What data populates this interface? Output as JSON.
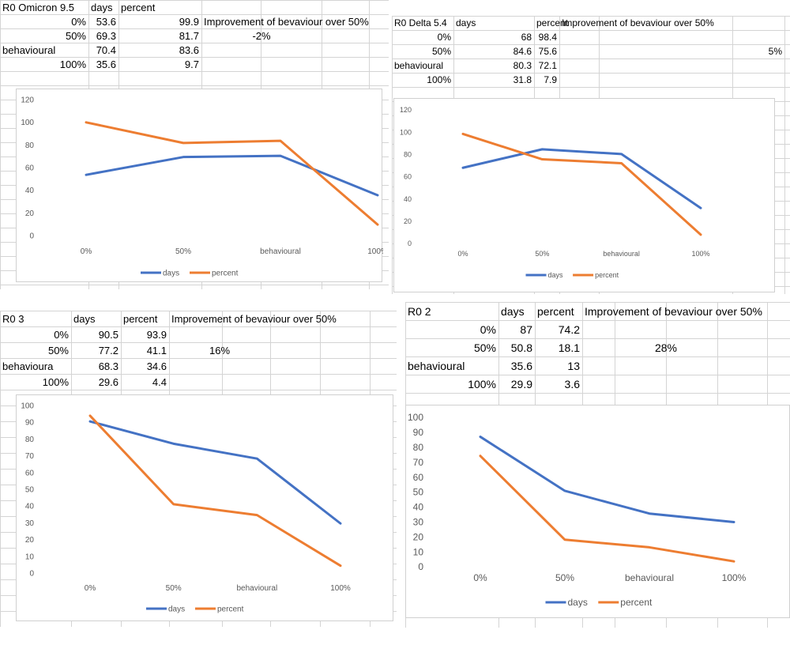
{
  "colors": {
    "days": "#4472c4",
    "percent": "#ed7d31",
    "grid_line": "#d4d4d4",
    "tick_text": "#595959"
  },
  "panels": [
    {
      "id": "omicron",
      "table": {
        "title": "R0 Omicron 9.5",
        "col_days": "days",
        "col_percent": "percent",
        "note": "Improvement of bevaviour over 50%",
        "improvement": "-2%",
        "rows": [
          {
            "label": "0%",
            "days": "53.6",
            "percent": "99.9"
          },
          {
            "label": "50%",
            "days": "69.3",
            "percent": "81.7"
          },
          {
            "label": "behavioural",
            "days": "70.4",
            "percent": "83.6"
          },
          {
            "label": "100%",
            "days": "35.6",
            "percent": "9.7"
          }
        ]
      },
      "chart_data": {
        "type": "line",
        "categories": [
          "0%",
          "50%",
          "behavioural",
          "100%"
        ],
        "series": [
          {
            "name": "days",
            "values": [
              53.6,
              69.3,
              70.4,
              35.6
            ]
          },
          {
            "name": "percent",
            "values": [
              99.9,
              81.7,
              83.6,
              9.7
            ]
          }
        ],
        "ylim": [
          0,
          120
        ],
        "yticks": [
          "0",
          "20",
          "40",
          "60",
          "80",
          "100",
          "120"
        ],
        "legend": "bottom",
        "grid": false
      }
    },
    {
      "id": "delta",
      "table": {
        "title": "R0 Delta 5.4",
        "col_days": "days",
        "col_percent": "percent",
        "note": "Improvement of bevaviour over 50%",
        "improvement": "5%",
        "rows": [
          {
            "label": "0%",
            "days": "68",
            "percent": "98.4"
          },
          {
            "label": "50%",
            "days": "84.6",
            "percent": "75.6"
          },
          {
            "label": "behavioural",
            "days": "80.3",
            "percent": "72.1"
          },
          {
            "label": "100%",
            "days": "31.8",
            "percent": "7.9"
          }
        ]
      },
      "chart_data": {
        "type": "line",
        "categories": [
          "0%",
          "50%",
          "behavioural",
          "100%"
        ],
        "series": [
          {
            "name": "days",
            "values": [
              68,
              84.6,
              80.3,
              31.8
            ]
          },
          {
            "name": "percent",
            "values": [
              98.4,
              75.6,
              72.1,
              7.9
            ]
          }
        ],
        "ylim": [
          0,
          120
        ],
        "yticks": [
          "0",
          "20",
          "40",
          "60",
          "80",
          "100",
          "120"
        ],
        "legend": "bottom",
        "grid": false
      }
    },
    {
      "id": "r03",
      "table": {
        "title": "R0 3",
        "col_days": "days",
        "col_percent": "percent",
        "note": "Improvement of bevaviour over 50%",
        "improvement": "16%",
        "rows": [
          {
            "label": "0%",
            "days": "90.5",
            "percent": "93.9"
          },
          {
            "label": "50%",
            "days": "77.2",
            "percent": "41.1"
          },
          {
            "label": "behavioura",
            "days": "68.3",
            "percent": "34.6"
          },
          {
            "label": "100%",
            "days": "29.6",
            "percent": "4.4"
          }
        ]
      },
      "chart_data": {
        "type": "line",
        "categories": [
          "0%",
          "50%",
          "behavioural",
          "100%"
        ],
        "series": [
          {
            "name": "days",
            "values": [
              90.5,
              77.2,
              68.3,
              29.6
            ]
          },
          {
            "name": "percent",
            "values": [
              93.9,
              41.1,
              34.6,
              4.4
            ]
          }
        ],
        "ylim": [
          0,
          100
        ],
        "yticks": [
          "0",
          "10",
          "20",
          "30",
          "40",
          "50",
          "60",
          "70",
          "80",
          "90",
          "100"
        ],
        "legend": "bottom",
        "grid": false
      }
    },
    {
      "id": "r02",
      "table": {
        "title": "R0 2",
        "col_days": "days",
        "col_percent": "percent",
        "note": "Improvement of bevaviour over 50%",
        "improvement": "28%",
        "rows": [
          {
            "label": "0%",
            "days": "87",
            "percent": "74.2"
          },
          {
            "label": "50%",
            "days": "50.8",
            "percent": "18.1"
          },
          {
            "label": "behavioural",
            "days": "35.6",
            "percent": "13"
          },
          {
            "label": "100%",
            "days": "29.9",
            "percent": "3.6"
          }
        ]
      },
      "chart_data": {
        "type": "line",
        "categories": [
          "0%",
          "50%",
          "behavioural",
          "100%"
        ],
        "series": [
          {
            "name": "days",
            "values": [
              87,
              50.8,
              35.6,
              29.9
            ]
          },
          {
            "name": "percent",
            "values": [
              74.2,
              18.1,
              13,
              3.6
            ]
          }
        ],
        "ylim": [
          0,
          100
        ],
        "yticks": [
          "0",
          "10",
          "20",
          "30",
          "40",
          "50",
          "60",
          "70",
          "80",
          "90",
          "100"
        ],
        "legend": "bottom",
        "grid": false
      }
    }
  ]
}
